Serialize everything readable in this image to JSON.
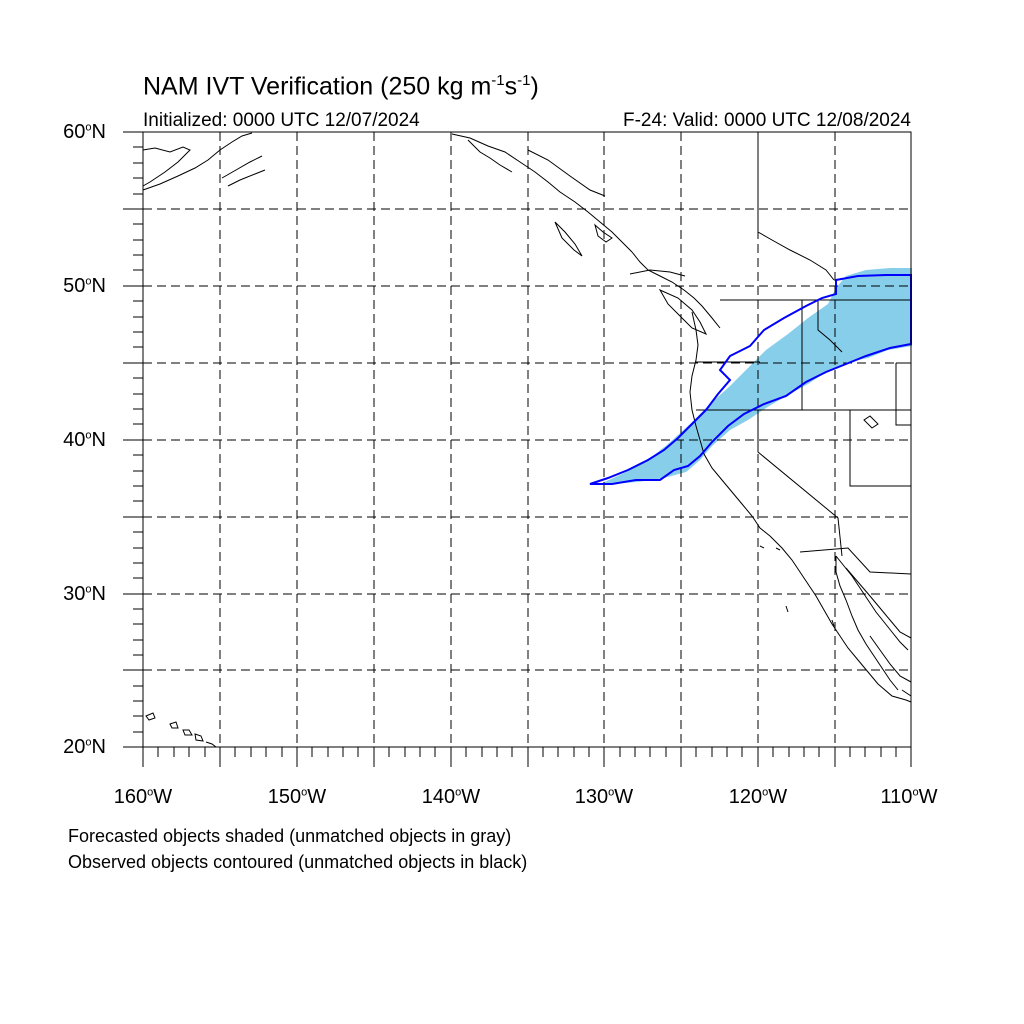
{
  "title": {
    "main": "NAM IVT Verification (250 kg m",
    "unit_exp1": "-1",
    "unit_s": "s",
    "unit_exp2": "-1",
    "unit_close": ")"
  },
  "subtitle_left": "Initialized: 0000 UTC 12/07/2024",
  "subtitle_right": "F-24: Valid: 0000 UTC 12/08/2024",
  "lat_labels": [
    {
      "deg": "60",
      "hemi": "N"
    },
    {
      "deg": "50",
      "hemi": "N"
    },
    {
      "deg": "40",
      "hemi": "N"
    },
    {
      "deg": "30",
      "hemi": "N"
    },
    {
      "deg": "20",
      "hemi": "N"
    }
  ],
  "lon_labels": [
    {
      "deg": "160",
      "hemi": "W"
    },
    {
      "deg": "150",
      "hemi": "W"
    },
    {
      "deg": "140",
      "hemi": "W"
    },
    {
      "deg": "130",
      "hemi": "W"
    },
    {
      "deg": "120",
      "hemi": "W"
    },
    {
      "deg": "110",
      "hemi": "W"
    }
  ],
  "footer": [
    "Forecasted objects shaded (unmatched objects in gray)",
    "Observed objects contoured (unmatched objects in black)"
  ],
  "colors": {
    "forecast_fill": "#87ceeb",
    "observed_contour": "#0000ff",
    "grid": "#000000"
  }
}
